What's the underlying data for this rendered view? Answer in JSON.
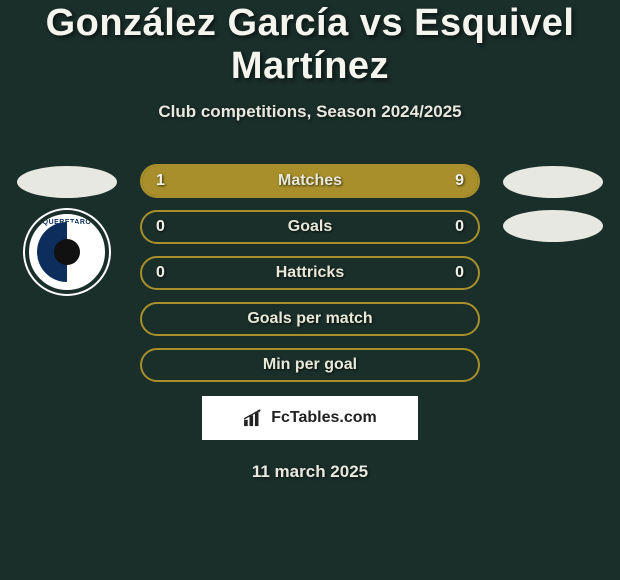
{
  "title": "González García vs Esquivel Martínez",
  "subtitle": "Club competitions, Season 2024/2025",
  "date": "11 march 2025",
  "attribution": "FcTables.com",
  "colors": {
    "background": "#1a2e2a",
    "bar_border": "#a88f2c",
    "bar_fill": "#a88f2c",
    "text": "#f5f5f0",
    "placeholder": "#e8e8e2"
  },
  "left_player": {
    "placeholders": 1,
    "club_top": "QUERETARO",
    "club_bottom": " "
  },
  "right_player": {
    "placeholders": 2
  },
  "stats": [
    {
      "label": "Matches",
      "left_val": "1",
      "right_val": "9",
      "left_pct": 10,
      "right_pct": 90
    },
    {
      "label": "Goals",
      "left_val": "0",
      "right_val": "0",
      "left_pct": 0,
      "right_pct": 0
    },
    {
      "label": "Hattricks",
      "left_val": "0",
      "right_val": "0",
      "left_pct": 0,
      "right_pct": 0
    },
    {
      "label": "Goals per match",
      "left_val": "",
      "right_val": "",
      "left_pct": 0,
      "right_pct": 0
    },
    {
      "label": "Min per goal",
      "left_val": "",
      "right_val": "",
      "left_pct": 0,
      "right_pct": 0
    }
  ]
}
